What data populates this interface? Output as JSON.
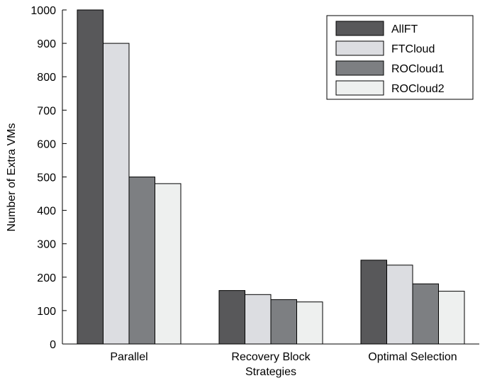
{
  "chart_data": {
    "type": "bar",
    "categories": [
      "Parallel",
      "Recovery Block",
      "Optimal Selection"
    ],
    "series": [
      {
        "name": "AllFT",
        "values": [
          1000,
          160,
          251
        ],
        "color": "#58585a"
      },
      {
        "name": "FTCloud",
        "values": [
          900,
          148,
          236
        ],
        "color": "#dcdde1"
      },
      {
        "name": "ROCloud1",
        "values": [
          500,
          133,
          180
        ],
        "color": "#7d7f82"
      },
      {
        "name": "ROCloud2",
        "values": [
          480,
          126,
          158
        ],
        "color": "#eef0ef"
      }
    ],
    "title": "",
    "xlabel": "Strategies",
    "ylabel": "Number of Extra VMs",
    "ylim": [
      0,
      1000
    ],
    "yticks": [
      0,
      100,
      200,
      300,
      400,
      500,
      600,
      700,
      800,
      900,
      1000
    ],
    "grid": false,
    "legend_position": "top-right"
  }
}
